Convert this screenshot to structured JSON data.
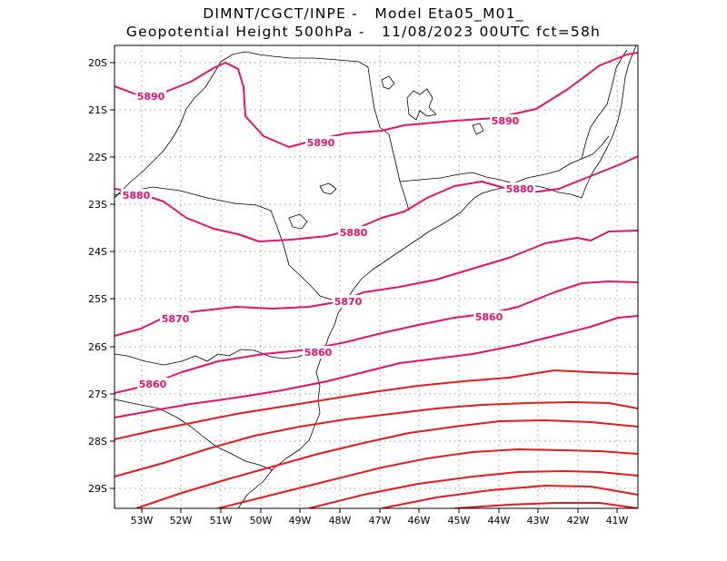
{
  "title": {
    "line1": "DIMNT/CGCT/INPE -   Model Eta05_M01_",
    "line2": "Geopotential Height 500hPa -   11/08/2023 00UTC fct=58h"
  },
  "map": {
    "lon_range": [
      -53.6,
      -40.4
    ],
    "lat_range": [
      -29.4,
      -19.7
    ],
    "lat_ticks": [
      "20S",
      "21S",
      "22S",
      "23S",
      "24S",
      "25S",
      "26S",
      "27S",
      "28S",
      "29S"
    ],
    "lon_ticks": [
      "53W",
      "52W",
      "51W",
      "50W",
      "49W",
      "48W",
      "47W",
      "46W",
      "45W",
      "44W",
      "43W",
      "42W",
      "41W"
    ],
    "grid": "dotted",
    "colors": {
      "magenta": "#e8106e",
      "red": "#e61a1a",
      "border": "#000000",
      "grid": "#9a9a9a"
    }
  },
  "contours": {
    "labels": [
      {
        "text": "5890"
      },
      {
        "text": "5890"
      },
      {
        "text": "5890"
      },
      {
        "text": "5880"
      },
      {
        "text": "5880"
      },
      {
        "text": "5880"
      },
      {
        "text": "5870"
      },
      {
        "text": "5870"
      },
      {
        "text": "5860"
      },
      {
        "text": "5860"
      },
      {
        "text": "5860"
      }
    ]
  }
}
